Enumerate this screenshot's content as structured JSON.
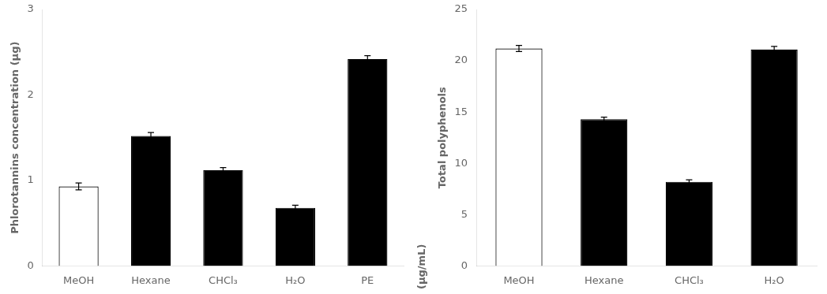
{
  "chart_data": [
    {
      "type": "bar",
      "categories": [
        "MeOH",
        "Hexane",
        "CHCl₃",
        "H₂O",
        "PE"
      ],
      "values": [
        0.93,
        1.52,
        1.12,
        0.68,
        2.42
      ],
      "errors": [
        0.04,
        0.04,
        0.03,
        0.03,
        0.04
      ],
      "colors": [
        "white",
        "black",
        "black",
        "black",
        "black"
      ],
      "ylabel": "Phlorotannins concentration (μg)",
      "ylim": [
        0,
        3
      ],
      "yticks": [
        0,
        1,
        2,
        3
      ],
      "grid": false
    },
    {
      "type": "bar",
      "categories": [
        "MeOH",
        "Hexane",
        "CHCl₃",
        "H₂O"
      ],
      "values": [
        21.2,
        14.3,
        8.2,
        21.1
      ],
      "errors": [
        0.3,
        0.2,
        0.2,
        0.3
      ],
      "colors": [
        "white",
        "black",
        "black",
        "black"
      ],
      "ylabel": "Total polyphenols",
      "annotation": "(μg/mL)",
      "ylim": [
        0,
        25
      ],
      "yticks": [
        0,
        5,
        10,
        15,
        20,
        25
      ],
      "grid": false
    }
  ]
}
